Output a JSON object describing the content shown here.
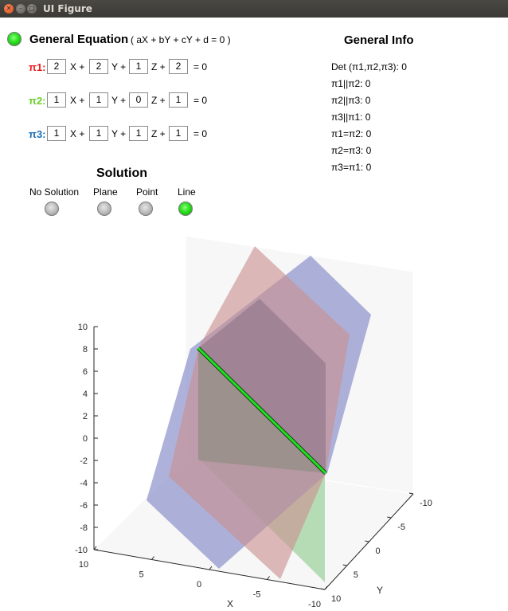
{
  "window": {
    "title": "UI Figure"
  },
  "general_equation": {
    "title": "General Equation",
    "formula": "( aX + bY + cY + d = 0 )"
  },
  "equations": [
    {
      "label": "π1:",
      "color": "#ee1b1b",
      "a": "2",
      "b": "2",
      "c": "1",
      "d": "2"
    },
    {
      "label": "π2:",
      "color": "#6ad12b",
      "a": "1",
      "b": "1",
      "c": "0",
      "d": "1"
    },
    {
      "label": "π3:",
      "color": "#1e6fb8",
      "a": "1",
      "b": "1",
      "c": "1",
      "d": "1"
    }
  ],
  "equation_terms": {
    "x": "X +",
    "y": "Y +",
    "z": "Z +",
    "eq": "= 0"
  },
  "general_info": {
    "title": "General Info",
    "items": [
      "Det (π1,π2,π3):  0",
      "π1||π2: 0",
      "π2||π3: 0",
      "π3||π1: 0",
      "π1=π2: 0",
      "π2=π3: 0",
      "π3=π1: 0"
    ]
  },
  "solution": {
    "title": "Solution",
    "options": [
      {
        "label": "No Solution",
        "active": false
      },
      {
        "label": "Plane",
        "active": false
      },
      {
        "label": "Point",
        "active": false
      },
      {
        "label": "Line",
        "active": true
      }
    ]
  },
  "plot": {
    "z_ticks": [
      "10",
      "8",
      "6",
      "4",
      "2",
      "0",
      "-2",
      "-4",
      "-6",
      "-8",
      "-10"
    ],
    "x_ticks": [
      "10",
      "5",
      "0",
      "-5",
      "-10"
    ],
    "y_ticks": [
      "-10",
      "-5",
      "0",
      "5",
      "10"
    ],
    "xlabel": "X",
    "ylabel": "Y",
    "colors": {
      "pi1": "#c99090",
      "pi2": "#9fd39f",
      "pi3": "#8f94cc",
      "intersection": "#1fe01f"
    }
  }
}
